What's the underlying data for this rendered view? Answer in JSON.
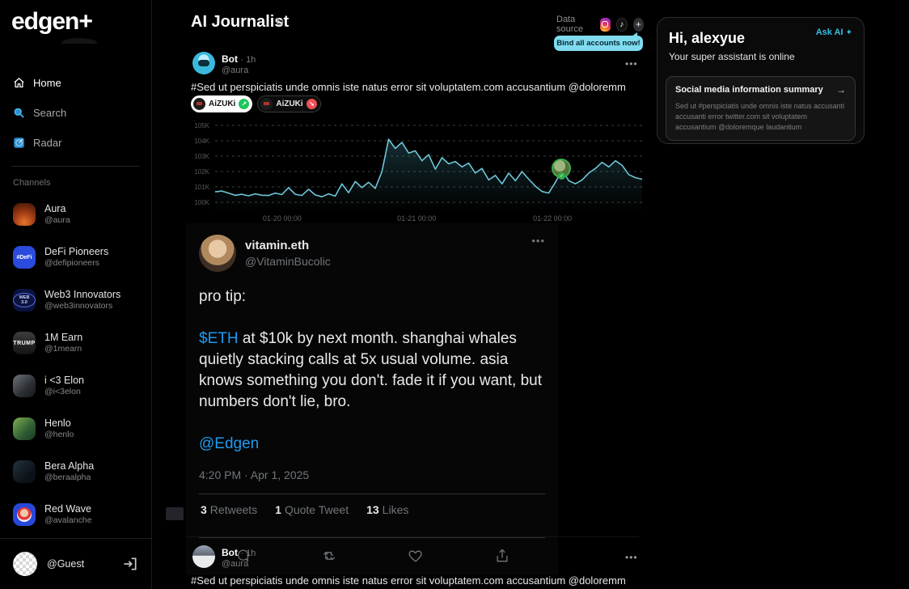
{
  "colors": {
    "accent_cyan": "#35bfe3",
    "tooltip_cyan": "#7fdcef",
    "twitter_blue": "#1d9bf0",
    "chart_line": "#6fc6d9",
    "positive_green": "#21c55d",
    "negative_red": "#ef4f56"
  },
  "sidebar": {
    "logo": "edgen+",
    "nav": [
      {
        "label": "Home"
      },
      {
        "label": "Search"
      },
      {
        "label": "Radar"
      }
    ],
    "channels_label": "Channels",
    "channels": [
      {
        "name": "Aura",
        "handle": "@aura",
        "avatar_text": ""
      },
      {
        "name": "DeFi Pioneers",
        "handle": "@defipioneers",
        "avatar_text": "#DeFi"
      },
      {
        "name": "Web3 Innovators",
        "handle": "@web3innovators",
        "avatar_text": "WEB 3.0"
      },
      {
        "name": "1M Earn",
        "handle": "@1mearn",
        "avatar_text": "TRUMP"
      },
      {
        "name": "i <3 Elon",
        "handle": "@i<3elon",
        "avatar_text": ""
      },
      {
        "name": "Henlo",
        "handle": "@henlo",
        "avatar_text": ""
      },
      {
        "name": "Bera Alpha",
        "handle": "@beraalpha",
        "avatar_text": ""
      },
      {
        "name": "Red Wave",
        "handle": "@avalanche",
        "avatar_text": ""
      }
    ],
    "guest": {
      "name": "@Guest"
    }
  },
  "header": {
    "title": "AI Journalist",
    "refresh": "↻",
    "data_source_label": "Data source",
    "tiktok_glyph": "♪",
    "plus_glyph": "+",
    "bind_tooltip": "Bind all accounts now!"
  },
  "posts": {
    "bot1": {
      "name": "Bot",
      "time": "· 1h",
      "handle": "@aura",
      "more": "•••",
      "text": "#Sed ut perspiciatis unde omnis iste natus error sit voluptatem.com accusantium @doloremm",
      "tags": [
        {
          "label": "AiZUKi",
          "status": "positive",
          "badge": "↗"
        },
        {
          "label": "AiZUKi",
          "status": "negative",
          "badge": "↘"
        }
      ]
    },
    "bot2": {
      "name": "Bot",
      "time": "· 1h",
      "handle": "@aura",
      "more": "•••",
      "text": "#Sed ut perspiciatis unde omnis iste natus error sit voluptatem.com accusantium @doloremm"
    }
  },
  "tweet": {
    "name": "vitamin.eth",
    "handle": "@VitaminBucolic",
    "more": "•••",
    "line1": "pro tip:",
    "cashtag": "$ETH",
    "body_rest": " at $10k by next month. shanghai whales quietly stacking calls at 5x usual volume. asia knows something you don't. fade it if you want, but numbers don't lie, bro.",
    "mention": "@Edgen",
    "timestamp": "4:20 PM · Apr 1, 2025",
    "retweets_count": "3",
    "retweets_label": "Retweets",
    "quote_count": "1",
    "quote_label": "Quote Tweet",
    "likes_count": "13",
    "likes_label": "Likes"
  },
  "assistant": {
    "greeting": "Hi, alexyue",
    "ask_ai": "Ask AI",
    "spark": "✦",
    "status": "Your super assistant is online",
    "summary_title": "Social media information summary",
    "summary_arrow": "→",
    "summary_body": "Sed ut #perspiciatis unde omnis iste natus  accusanti accusanti error twitter.com sit voluptatem accusantium @doloremque laudantium"
  },
  "chart_data": {
    "type": "line",
    "title": "",
    "series_name": "account metric",
    "ylabel": "",
    "xlabel": "",
    "ylim": [
      100,
      105
    ],
    "unit": "K",
    "grid": "horizontal-dashed",
    "line_color": "#6fc6d9",
    "y_ticks": [
      "105K",
      "104K",
      "103K",
      "102K",
      "101K",
      "100K"
    ],
    "x_ticks": [
      {
        "label": "01-20 00:00",
        "pos": 0.157
      },
      {
        "label": "01-21 00:00",
        "pos": 0.472
      },
      {
        "label": "01-22 00:00",
        "pos": 0.79
      }
    ],
    "values": [
      100.68,
      100.73,
      100.6,
      100.45,
      100.52,
      100.42,
      100.55,
      100.46,
      100.44,
      100.6,
      100.5,
      100.95,
      100.52,
      100.44,
      100.85,
      100.48,
      100.36,
      100.55,
      100.4,
      101.2,
      100.62,
      101.35,
      100.95,
      101.3,
      100.9,
      102.0,
      104.1,
      103.5,
      103.9,
      103.2,
      103.35,
      102.7,
      103.1,
      102.15,
      102.9,
      102.5,
      102.65,
      102.3,
      102.55,
      101.9,
      102.2,
      101.45,
      101.75,
      101.2,
      101.9,
      101.4,
      102.0,
      101.5,
      101.05,
      100.7,
      100.6,
      101.3,
      102.1,
      101.4,
      101.2,
      101.45,
      101.9,
      102.2,
      102.6,
      102.3,
      102.7,
      102.4,
      101.8,
      101.6,
      101.5
    ],
    "marker_index": 52,
    "marker_badge": "✓"
  }
}
